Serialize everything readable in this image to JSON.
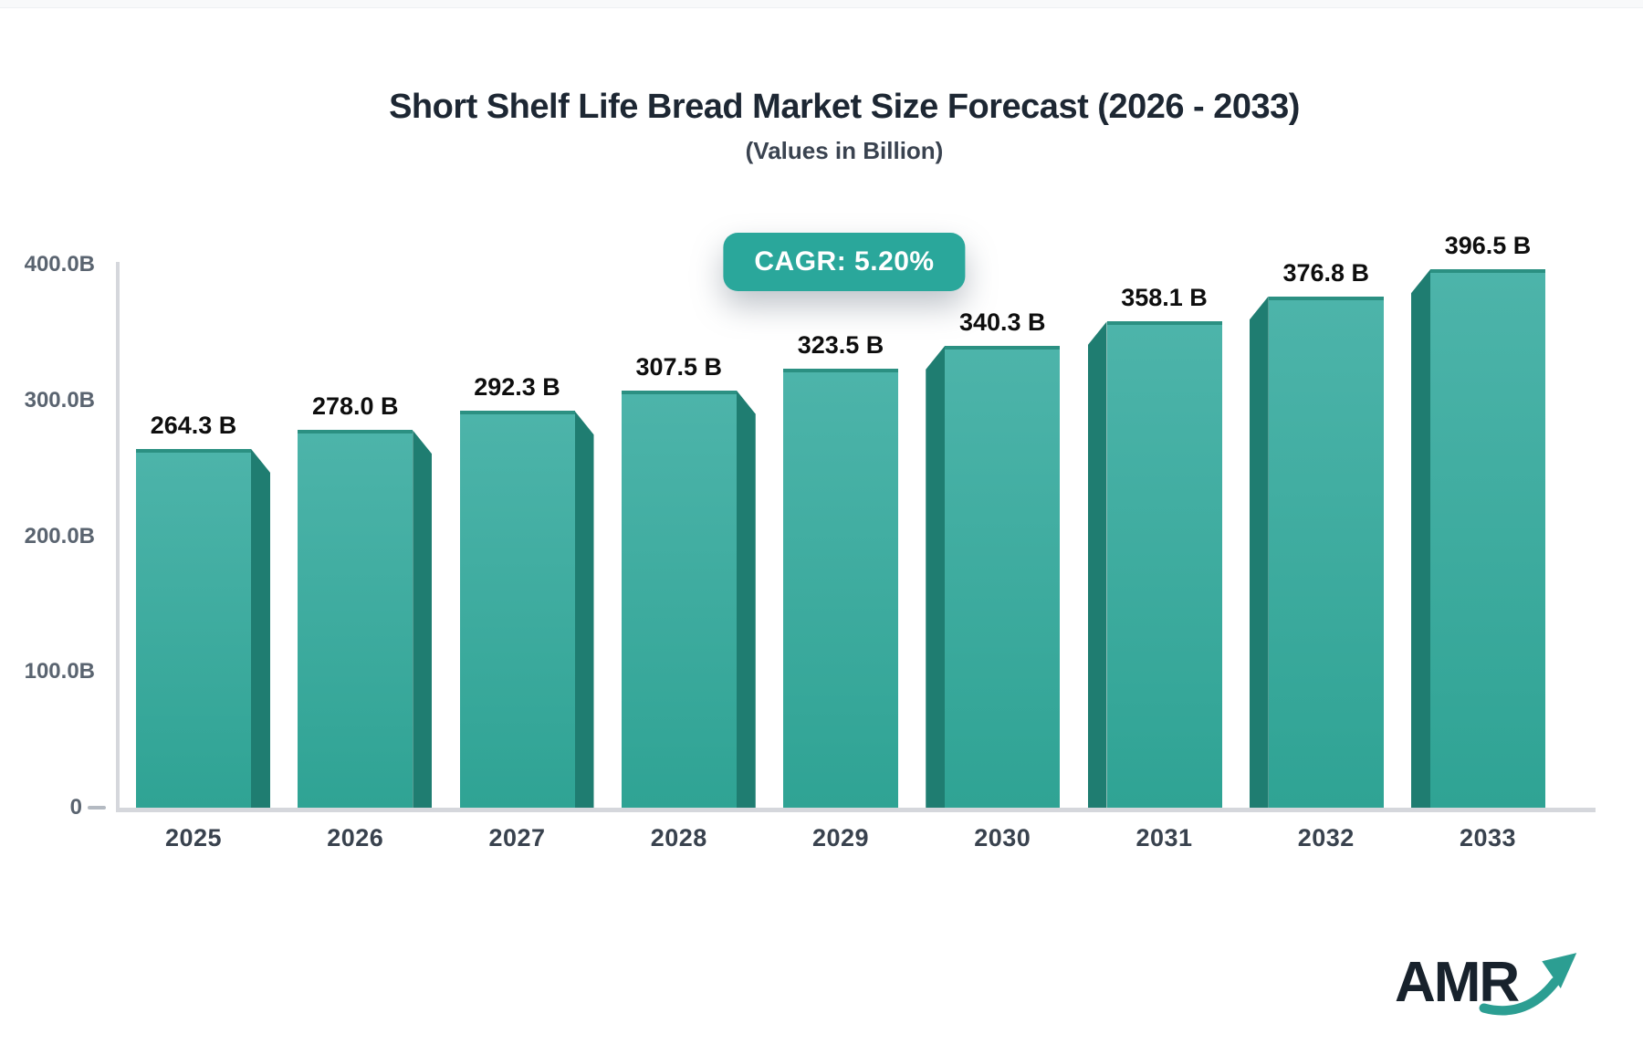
{
  "title": "Short Shelf Life Bread Market Size Forecast (2026 - 2033)",
  "subtitle": "(Values in Billion)",
  "badge": {
    "label": "CAGR: 5.20%"
  },
  "logo": {
    "text": "AMR"
  },
  "chart_data": {
    "type": "bar",
    "title": "Short Shelf Life Bread Market Size Forecast (2026 - 2033)",
    "subtitle": "(Values in Billion)",
    "annotation": "CAGR: 5.20%",
    "categories": [
      "2025",
      "2026",
      "2027",
      "2028",
      "2029",
      "2030",
      "2031",
      "2032",
      "2033"
    ],
    "values": [
      264.3,
      278.0,
      292.3,
      307.5,
      323.5,
      340.3,
      358.1,
      376.8,
      396.5
    ],
    "value_labels": [
      "264.3 B",
      "278.0 B",
      "292.3 B",
      "307.5 B",
      "323.5 B",
      "340.3 B",
      "358.1 B",
      "376.8 B",
      "396.5 B"
    ],
    "xlabel": "",
    "ylabel": "",
    "ylim": [
      0,
      400
    ],
    "ytick_labels": [
      "400.0B",
      "300.0B",
      "200.0B",
      "100.0B",
      "0"
    ],
    "ytick_values": [
      400,
      300,
      200,
      100,
      0
    ],
    "grid": false,
    "legend": null,
    "bar_style": "3d-beveled"
  },
  "colors": {
    "accent_teal": "#2AA79B",
    "bar_gradient_top": "#4DB4AA",
    "bar_gradient_bottom": "#2FA394",
    "bar_side": "#1F7D71",
    "bar_top_edge": "#2B9082",
    "axis_line": "#D5D7DC",
    "axis_text": "#5A6470",
    "xtick_text": "#39424E",
    "value_text": "#0E0E0E",
    "title_text": "#1D2733",
    "logo_text": "#18222C",
    "logo_arrow": "#2C9E92"
  }
}
